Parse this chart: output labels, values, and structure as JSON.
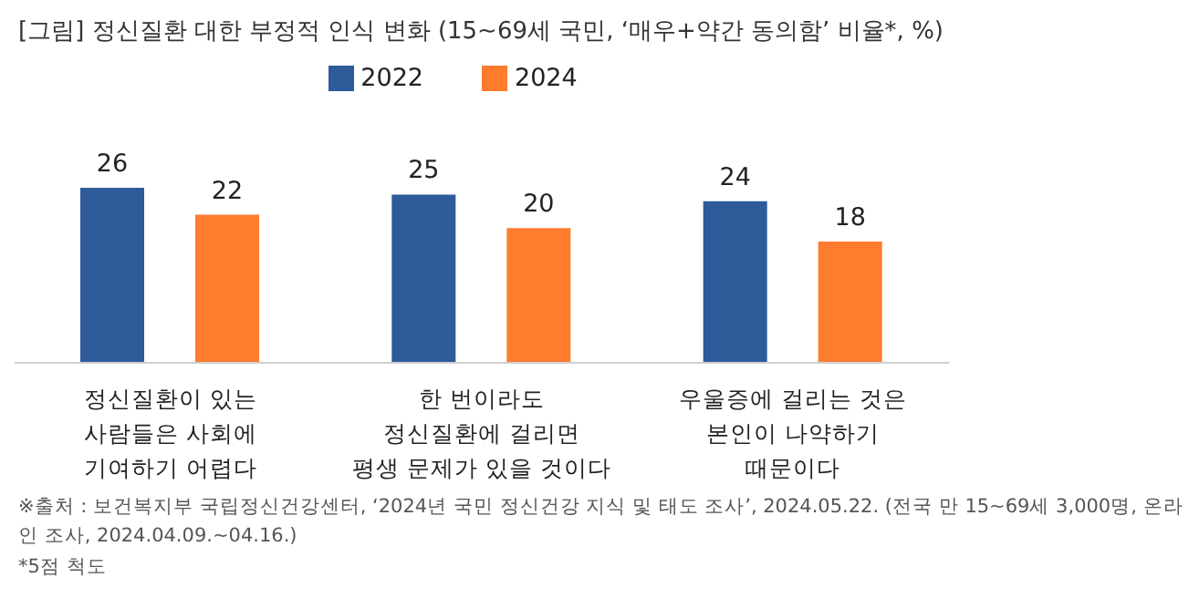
{
  "chart_data": {
    "type": "bar",
    "title": "[그림] 정신질환 대한 부정적 인식 변화 (15~69세 국민, ‘매우+약간 동의함’ 비율*, %)",
    "categories": [
      "정신질환이 있는\n사람들은 사회에\n기여하기 어렵다",
      "한 번이라도\n정신질환에 걸리면\n평생 문제가 있을 것이다",
      "우울증에 걸리는 것은\n본인이 나약하기\n때문이다"
    ],
    "series": [
      {
        "name": "2022",
        "color": "#2e5b9a",
        "values": [
          26,
          25,
          24
        ]
      },
      {
        "name": "2024",
        "color": "#ff7b2e",
        "values": [
          22,
          20,
          18
        ]
      }
    ],
    "data_labels": true,
    "legend": "top",
    "grid": false,
    "annotations": [
      "※출처 : 보건복지부 국립정신건강센터, ‘2024년 국민 정신건강 지식 및 태도 조사’, 2024.05.22. (전국 만 15~69세 3,000명, 온라인 조사, 2024.04.09.~04.16.)",
      "*5점 척도"
    ]
  }
}
